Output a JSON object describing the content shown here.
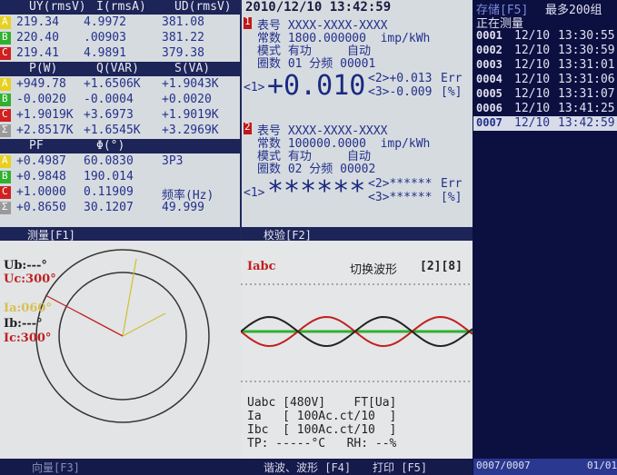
{
  "measure": {
    "sections": [
      {
        "headers": [
          "UY(rmsV)",
          "I(rmsA)",
          "UD(rmsV)"
        ],
        "rows": [
          {
            "phase": "A",
            "cells": [
              "219.34",
              "4.9972",
              "381.08"
            ]
          },
          {
            "phase": "B",
            "cells": [
              "220.40",
              ".00903",
              "381.22"
            ]
          },
          {
            "phase": "C",
            "cells": [
              "219.41",
              "4.9891",
              "379.38"
            ]
          }
        ]
      },
      {
        "headers": [
          "P(W)",
          "Q(VAR)",
          "S(VA)"
        ],
        "rows": [
          {
            "phase": "A",
            "cells": [
              "+949.78",
              "+1.6506K",
              "+1.9043K"
            ]
          },
          {
            "phase": "B",
            "cells": [
              "-0.0020",
              "-0.0004",
              "+0.0020"
            ]
          },
          {
            "phase": "C",
            "cells": [
              "+1.9019K",
              "+3.6973",
              "+1.9019K"
            ]
          },
          {
            "phase": "Σ",
            "cells": [
              "+2.8517K",
              "+1.6545K",
              "+3.2969K"
            ]
          }
        ]
      },
      {
        "headers": [
          "PF",
          "Φ(°)"
        ],
        "rows": [
          {
            "phase": "A",
            "cells": [
              "+0.4987",
              "60.0830",
              "3P3"
            ]
          },
          {
            "phase": "B",
            "cells": [
              "+0.9848",
              "190.014"
            ]
          },
          {
            "phase": "C",
            "cells": [
              "+1.0000",
              "0.11909",
              "频率(Hz)"
            ]
          },
          {
            "phase": "Σ",
            "cells": [
              "+0.8650",
              "30.1207",
              "49.999"
            ]
          }
        ]
      }
    ],
    "tab": "测量[F1]"
  },
  "verify": {
    "timestamp": "2010/12/10 13:42:59",
    "meters": [
      {
        "index": "1",
        "lines": [
          "表号 XXXX-XXXX-XXXX",
          "常数 1800.000000  imp/kWh",
          "模式 有功     自动",
          "圈数 01 分频 00001"
        ],
        "channel": "<1>",
        "result": "+0.010",
        "r2": "<2>+0.013",
        "r3": "<3>-0.009",
        "err": "Err",
        "unit": "[%]"
      },
      {
        "index": "2",
        "lines": [
          "表号 XXXX-XXXX-XXXX",
          "常数 100000.0000  imp/kWh",
          "模式 有功     自动",
          "圈数 02 分频 00002"
        ],
        "channel": "<1>",
        "result": "******",
        "r2": "<2>******",
        "r3": "<3>******",
        "err": "Err",
        "unit": "[%]"
      }
    ],
    "tab": "校验[F2]"
  },
  "storage": {
    "title": "存储[F5]",
    "max": "最多200组",
    "status": "正在测量",
    "records": [
      {
        "id": "0001",
        "date": "12/10",
        "time": "13:30:55"
      },
      {
        "id": "0002",
        "date": "12/10",
        "time": "13:30:59"
      },
      {
        "id": "0003",
        "date": "12/10",
        "time": "13:31:01"
      },
      {
        "id": "0004",
        "date": "12/10",
        "time": "13:31:06"
      },
      {
        "id": "0005",
        "date": "12/10",
        "time": "13:31:07"
      },
      {
        "id": "0006",
        "date": "12/10",
        "time": "13:41:25"
      },
      {
        "id": "0007",
        "date": "12/10",
        "time": "13:42:59"
      }
    ],
    "count": "0007/0007",
    "page": "01/01"
  },
  "vector": {
    "labels": [
      "Ub:---°",
      "Uc:300°",
      "Ia:060°",
      "Ib:---°",
      "Ic:300°"
    ],
    "tab": "向量[F3]"
  },
  "wave": {
    "signal": "Iabc",
    "switch": "切换波形",
    "keys": "[2][8]",
    "info": [
      "Uabc [480V]    FT[Ua]",
      "Ia   [ 100Ac.ct/10  ]",
      "Ibc  [ 100Ac.ct/10  ]",
      "TP: -----°C   RH: --%"
    ],
    "tab": "谐波、波形 [F4]",
    "print": "打印 [F5]"
  }
}
